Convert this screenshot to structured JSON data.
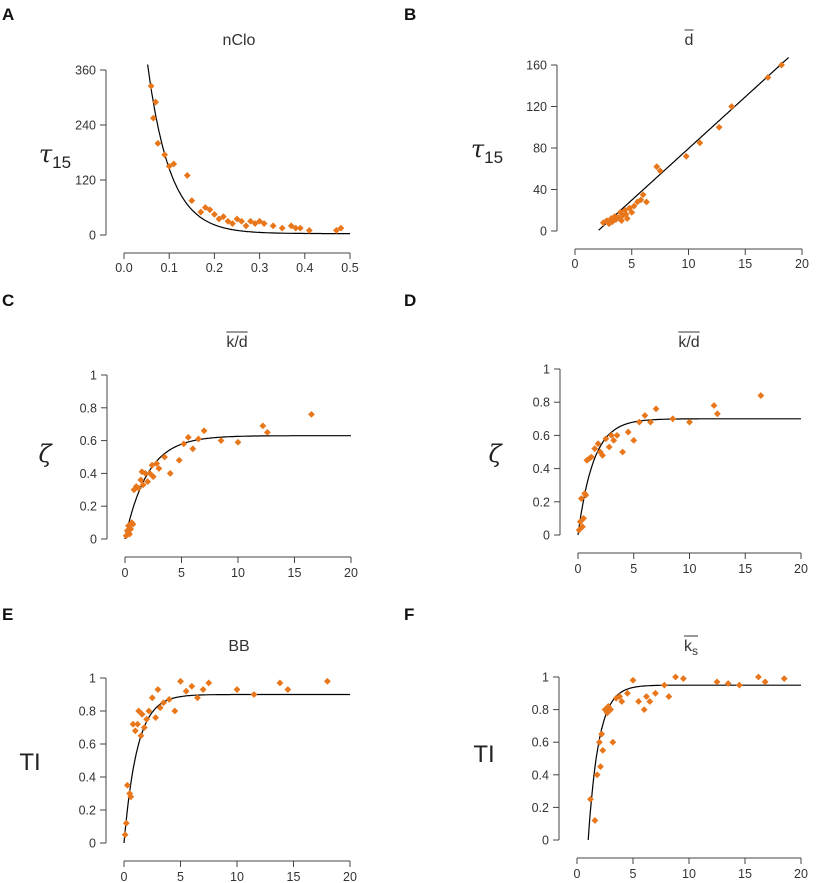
{
  "colors": {
    "points": "#E8761B",
    "curve": "#000000",
    "axis": "#444444"
  },
  "chart_data": [
    {
      "panel": "A",
      "type": "scatter",
      "title": "nClo",
      "xlabel": "",
      "ylabel": "τ15",
      "xlim": [
        0.0,
        0.5
      ],
      "ylim": [
        0,
        360
      ],
      "xticks": [
        "0.0",
        "0.1",
        "0.2",
        "0.3",
        "0.4",
        "0.5"
      ],
      "yticks": [
        "0",
        "120",
        "240",
        "360"
      ],
      "fit": {
        "kind": "exp_decay",
        "a": 1050,
        "b": 20.0,
        "c": 3
      },
      "x": [
        0.06,
        0.065,
        0.07,
        0.075,
        0.09,
        0.1,
        0.11,
        0.14,
        0.15,
        0.17,
        0.18,
        0.19,
        0.2,
        0.21,
        0.22,
        0.23,
        0.24,
        0.25,
        0.26,
        0.27,
        0.28,
        0.29,
        0.3,
        0.31,
        0.33,
        0.35,
        0.37,
        0.38,
        0.39,
        0.41,
        0.47,
        0.48
      ],
      "y": [
        325,
        255,
        290,
        200,
        175,
        150,
        155,
        130,
        75,
        50,
        60,
        55,
        45,
        35,
        40,
        30,
        25,
        35,
        30,
        20,
        30,
        25,
        30,
        25,
        20,
        15,
        20,
        15,
        15,
        10,
        10,
        15
      ]
    },
    {
      "panel": "B",
      "type": "scatter",
      "title": "d",
      "title_overline": true,
      "xlabel": "",
      "ylabel": "τ15",
      "xlim": [
        0,
        20
      ],
      "ylim": [
        0,
        160
      ],
      "xticks": [
        "0",
        "5",
        "10",
        "15",
        "20"
      ],
      "yticks": [
        "0",
        "40",
        "80",
        "120",
        "160"
      ],
      "fit": {
        "kind": "linear",
        "m": 9.95,
        "k": -20
      },
      "x": [
        2.5,
        2.8,
        3.0,
        3.2,
        3.3,
        3.5,
        3.6,
        3.8,
        4.0,
        4.1,
        4.2,
        4.4,
        4.5,
        4.6,
        4.8,
        5.0,
        5.2,
        5.5,
        5.8,
        6.0,
        6.3,
        7.2,
        7.5,
        9.8,
        11,
        12.7,
        13.8,
        17,
        18.2
      ],
      "y": [
        8,
        10,
        7,
        12,
        9,
        14,
        11,
        13,
        18,
        10,
        15,
        20,
        16,
        12,
        22,
        18,
        24,
        28,
        30,
        35,
        28,
        62,
        58,
        72,
        85,
        100,
        120,
        148,
        160
      ]
    },
    {
      "panel": "C",
      "type": "scatter",
      "title": "k/d",
      "title_overline": true,
      "xlabel": "",
      "ylabel": "ζ",
      "xlim": [
        0,
        20
      ],
      "ylim": [
        0,
        1
      ],
      "xticks": [
        "0",
        "5",
        "10",
        "15",
        "20"
      ],
      "yticks": [
        "0",
        "0.2",
        "0.4",
        "0.6",
        "0.8",
        "1"
      ],
      "fit": {
        "kind": "saturation",
        "A": 0.63,
        "k": 0.5,
        "x0": 0
      },
      "x": [
        0.1,
        0.2,
        0.3,
        0.4,
        0.5,
        0.6,
        0.7,
        0.8,
        1.0,
        1.2,
        1.4,
        1.5,
        1.6,
        1.8,
        2.0,
        2.2,
        2.4,
        2.5,
        2.8,
        3.0,
        3.5,
        4.0,
        4.8,
        5.2,
        5.6,
        6.0,
        6.5,
        7.0,
        8.5,
        10.0,
        12.2,
        12.6,
        16.5
      ],
      "y": [
        0.02,
        0.05,
        0.08,
        0.03,
        0.06,
        0.1,
        0.09,
        0.3,
        0.32,
        0.31,
        0.36,
        0.41,
        0.33,
        0.4,
        0.35,
        0.4,
        0.45,
        0.38,
        0.46,
        0.43,
        0.5,
        0.4,
        0.48,
        0.58,
        0.62,
        0.55,
        0.61,
        0.66,
        0.6,
        0.59,
        0.69,
        0.65,
        0.76
      ]
    },
    {
      "panel": "D",
      "type": "scatter",
      "title": "k/d",
      "title_overline": true,
      "xlabel": "",
      "ylabel": "ζ",
      "xlim": [
        0,
        20
      ],
      "ylim": [
        0,
        1
      ],
      "xticks": [
        "0",
        "5",
        "10",
        "15",
        "20"
      ],
      "yticks": [
        "0",
        "0.2",
        "0.4",
        "0.6",
        "0.8",
        "1"
      ],
      "fit": {
        "kind": "saturation",
        "A": 0.7,
        "k": 0.72,
        "x0": 0
      },
      "x": [
        0.1,
        0.2,
        0.3,
        0.4,
        0.5,
        0.6,
        0.7,
        0.8,
        1.0,
        1.2,
        1.5,
        1.8,
        2.0,
        2.2,
        2.5,
        2.8,
        3.0,
        3.2,
        3.5,
        4.0,
        4.5,
        5.0,
        5.5,
        6.0,
        6.5,
        7.0,
        8.5,
        10.0,
        12.2,
        12.5,
        16.4
      ],
      "y": [
        0.03,
        0.08,
        0.22,
        0.05,
        0.1,
        0.25,
        0.24,
        0.45,
        0.46,
        0.47,
        0.52,
        0.55,
        0.5,
        0.48,
        0.58,
        0.53,
        0.6,
        0.57,
        0.6,
        0.5,
        0.62,
        0.57,
        0.68,
        0.72,
        0.68,
        0.76,
        0.7,
        0.68,
        0.78,
        0.73,
        0.84
      ]
    },
    {
      "panel": "E",
      "type": "scatter",
      "title": "BB",
      "xlabel": "",
      "ylabel": "TI",
      "xlim": [
        0,
        20
      ],
      "ylim": [
        0,
        1
      ],
      "xticks": [
        "0",
        "5",
        "10",
        "15",
        "20"
      ],
      "yticks": [
        "0",
        "0.2",
        "0.4",
        "0.6",
        "0.8",
        "1"
      ],
      "fit": {
        "kind": "saturation",
        "A": 0.9,
        "k": 0.85,
        "x0": 0
      },
      "x": [
        0.1,
        0.2,
        0.3,
        0.5,
        0.6,
        0.8,
        1.0,
        1.2,
        1.3,
        1.5,
        1.6,
        1.8,
        2.0,
        2.2,
        2.5,
        2.8,
        3.0,
        3.2,
        3.5,
        4.0,
        4.5,
        5.0,
        5.5,
        6.0,
        6.5,
        7.0,
        7.5,
        10.0,
        11.5,
        13.8,
        14.5,
        18.0
      ],
      "y": [
        0.05,
        0.12,
        0.35,
        0.3,
        0.28,
        0.72,
        0.68,
        0.72,
        0.8,
        0.65,
        0.78,
        0.7,
        0.75,
        0.8,
        0.88,
        0.76,
        0.93,
        0.82,
        0.85,
        0.87,
        0.8,
        0.98,
        0.92,
        0.95,
        0.88,
        0.93,
        0.97,
        0.93,
        0.9,
        0.97,
        0.93,
        0.98
      ]
    },
    {
      "panel": "F",
      "type": "scatter",
      "title": "ks",
      "title_overline": true,
      "title_subscript": "s",
      "xlabel": "",
      "ylabel": "TI",
      "xlim": [
        0,
        20
      ],
      "ylim": [
        0,
        1
      ],
      "xticks": [
        "0",
        "5",
        "10",
        "15",
        "20"
      ],
      "yticks": [
        "0",
        "0.2",
        "0.4",
        "0.6",
        "0.8",
        "1"
      ],
      "fit": {
        "kind": "saturation",
        "A": 0.95,
        "k": 1.05,
        "x0": 1.0
      },
      "x": [
        1.2,
        1.6,
        1.8,
        2.0,
        2.1,
        2.2,
        2.3,
        2.5,
        2.7,
        2.8,
        3.0,
        3.2,
        3.5,
        3.8,
        4.0,
        4.5,
        5.0,
        5.5,
        6.0,
        6.2,
        6.5,
        7.0,
        7.8,
        8.2,
        8.8,
        9.5,
        12.5,
        13.5,
        14.5,
        16.2,
        16.8,
        18.5
      ],
      "y": [
        0.25,
        0.12,
        0.4,
        0.6,
        0.45,
        0.65,
        0.55,
        0.8,
        0.78,
        0.82,
        0.8,
        0.6,
        0.87,
        0.88,
        0.85,
        0.9,
        0.98,
        0.85,
        0.8,
        0.88,
        0.85,
        0.9,
        0.95,
        0.88,
        1.0,
        0.99,
        0.97,
        0.96,
        0.95,
        1.0,
        0.97,
        0.99
      ]
    }
  ]
}
